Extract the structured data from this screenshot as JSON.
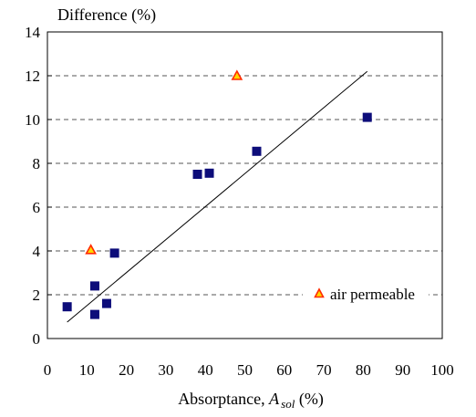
{
  "chart_data": {
    "type": "scatter",
    "ylabel": "Difference (%)",
    "xlabel_parts": {
      "prefix": "Absorptance, ",
      "var": "A",
      "sub": "sol",
      "suffix": " (%)"
    },
    "xlim": [
      0,
      100
    ],
    "ylim": [
      0,
      14
    ],
    "xticks": [
      0,
      10,
      20,
      30,
      40,
      50,
      60,
      70,
      80,
      90,
      100
    ],
    "yticks": [
      0,
      2,
      4,
      6,
      8,
      10,
      12,
      14
    ],
    "grid": "horizontal dashed",
    "legend_placement": "bottom-right",
    "series": [
      {
        "marker": "square",
        "color": "#0d0d7a",
        "points": [
          [
            5,
            1.45
          ],
          [
            12,
            1.1
          ],
          [
            12,
            2.4
          ],
          [
            15,
            1.6
          ],
          [
            17,
            3.9
          ],
          [
            38,
            7.5
          ],
          [
            41,
            7.55
          ],
          [
            53,
            8.55
          ],
          [
            81,
            10.1
          ]
        ]
      },
      {
        "name": "air permeable",
        "marker": "triangle",
        "color": "#ff2a00",
        "fill": "#ffd700",
        "points": [
          [
            11,
            4.05
          ],
          [
            48,
            12.0
          ]
        ]
      }
    ],
    "trendline": {
      "from": [
        5,
        0.75
      ],
      "to": [
        81,
        12.2
      ]
    }
  }
}
